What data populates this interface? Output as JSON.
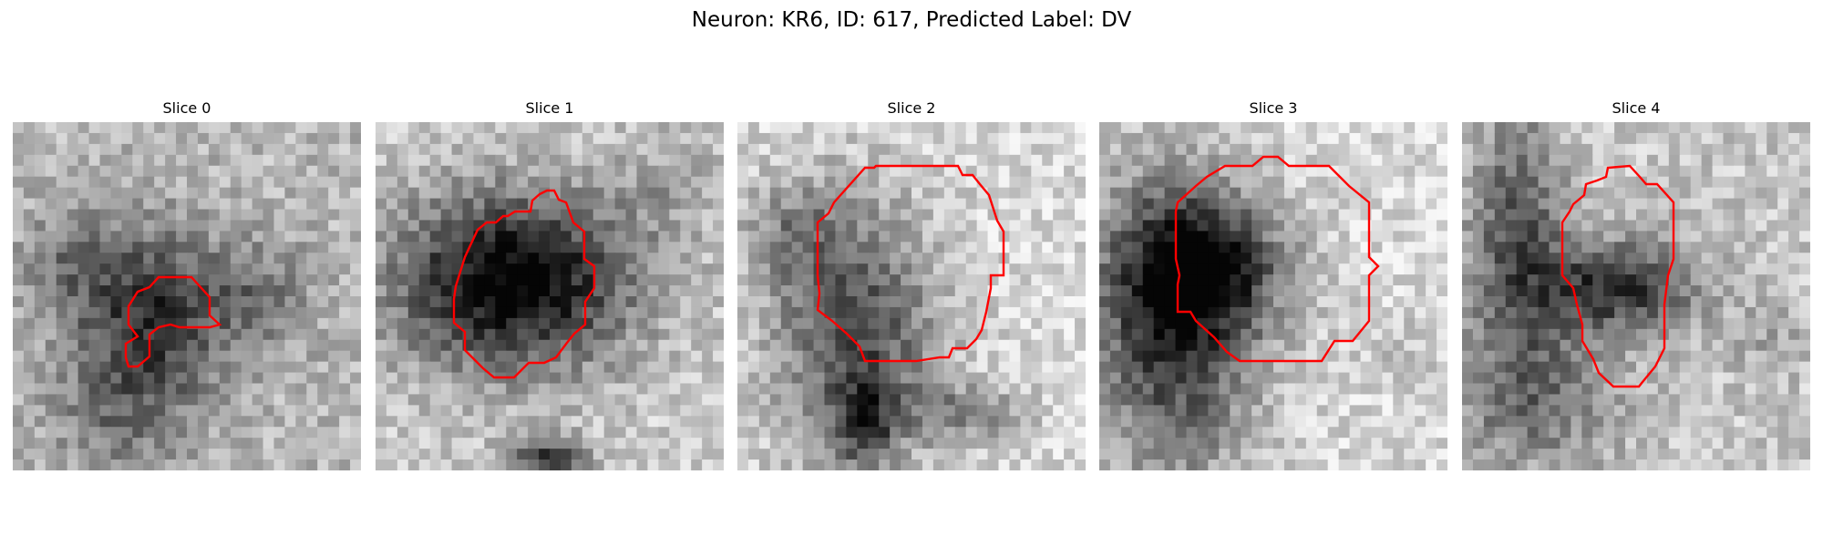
{
  "figure": {
    "title": "Neuron: KR6, ID: 617, Predicted Label: DV"
  },
  "panels": [
    {
      "title": "Slice 0",
      "mask_color": "#ff0000"
    },
    {
      "title": "Slice 1",
      "mask_color": "#ff0000"
    },
    {
      "title": "Slice 2",
      "mask_color": "#ff0000"
    },
    {
      "title": "Slice 3",
      "mask_color": "#ff0000"
    },
    {
      "title": "Slice 4",
      "mask_color": "#ff0000"
    }
  ],
  "colormap": "gray"
}
